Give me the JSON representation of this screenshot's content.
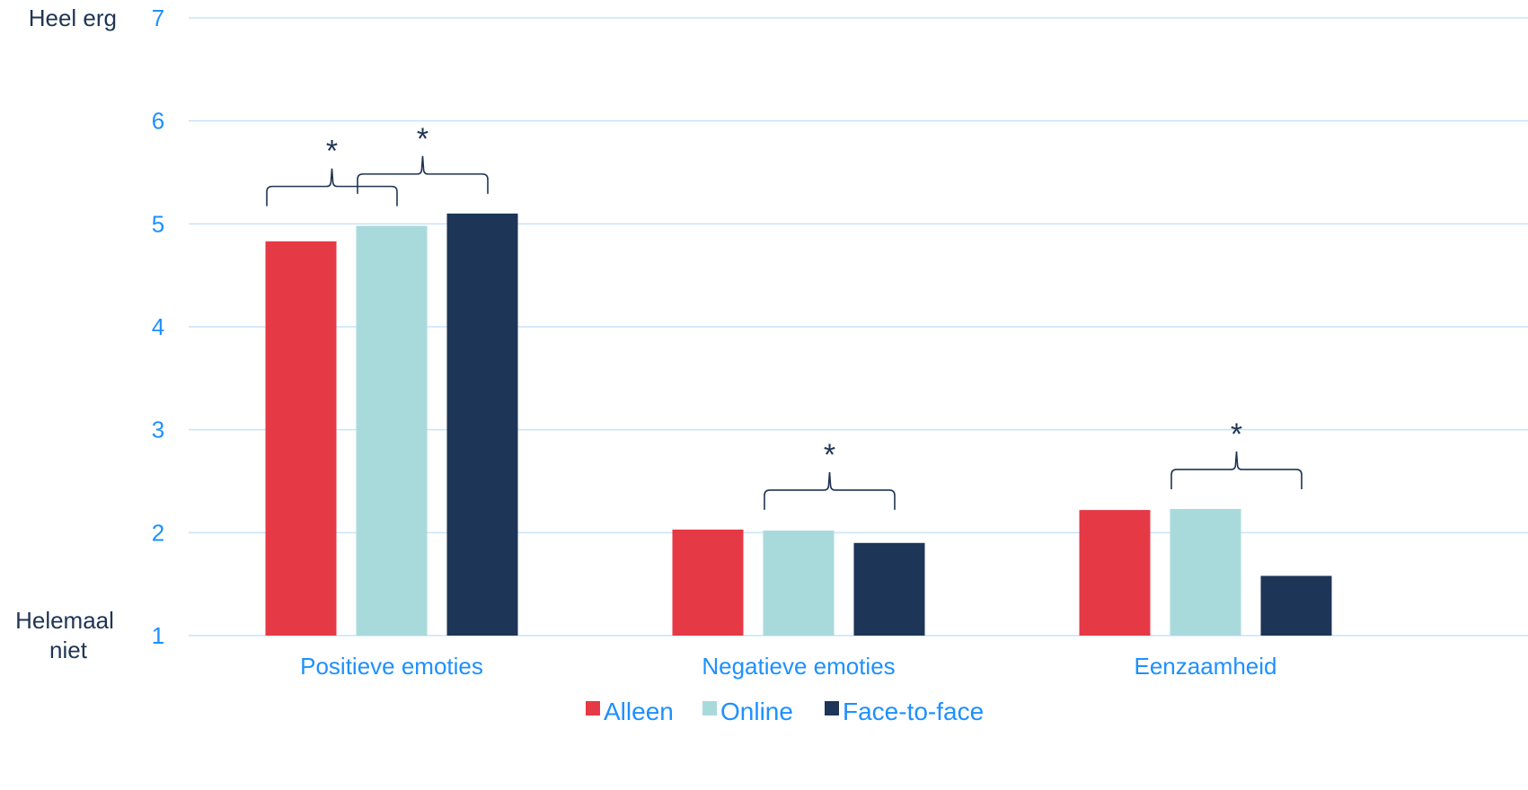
{
  "chart_data": {
    "type": "bar",
    "categories": [
      "Positieve emoties",
      "Negatieve emoties",
      "Eenzaamheid"
    ],
    "series": [
      {
        "name": "Alleen",
        "color": "#e63946",
        "values": [
          4.83,
          2.03,
          2.22
        ]
      },
      {
        "name": "Online",
        "color": "#a8dadc",
        "values": [
          4.98,
          2.02,
          2.23
        ]
      },
      {
        "name": "Face-to-face",
        "color": "#1d3557",
        "values": [
          5.1,
          1.9,
          1.58
        ]
      }
    ],
    "ylim": [
      1,
      7
    ],
    "yticks": [
      1,
      2,
      3,
      4,
      5,
      6,
      7
    ],
    "y_end_labels": {
      "top": "Heel erg",
      "bottom": "Helemaal niet"
    },
    "grid": true,
    "legend_position": "bottom",
    "significance": [
      {
        "category": 0,
        "from_series": 0,
        "to_series": 1,
        "label": "*"
      },
      {
        "category": 0,
        "from_series": 1,
        "to_series": 2,
        "label": "*"
      },
      {
        "category": 1,
        "from_series": 1,
        "to_series": 2,
        "label": "*"
      },
      {
        "category": 2,
        "from_series": 1,
        "to_series": 2,
        "label": "*"
      }
    ]
  }
}
